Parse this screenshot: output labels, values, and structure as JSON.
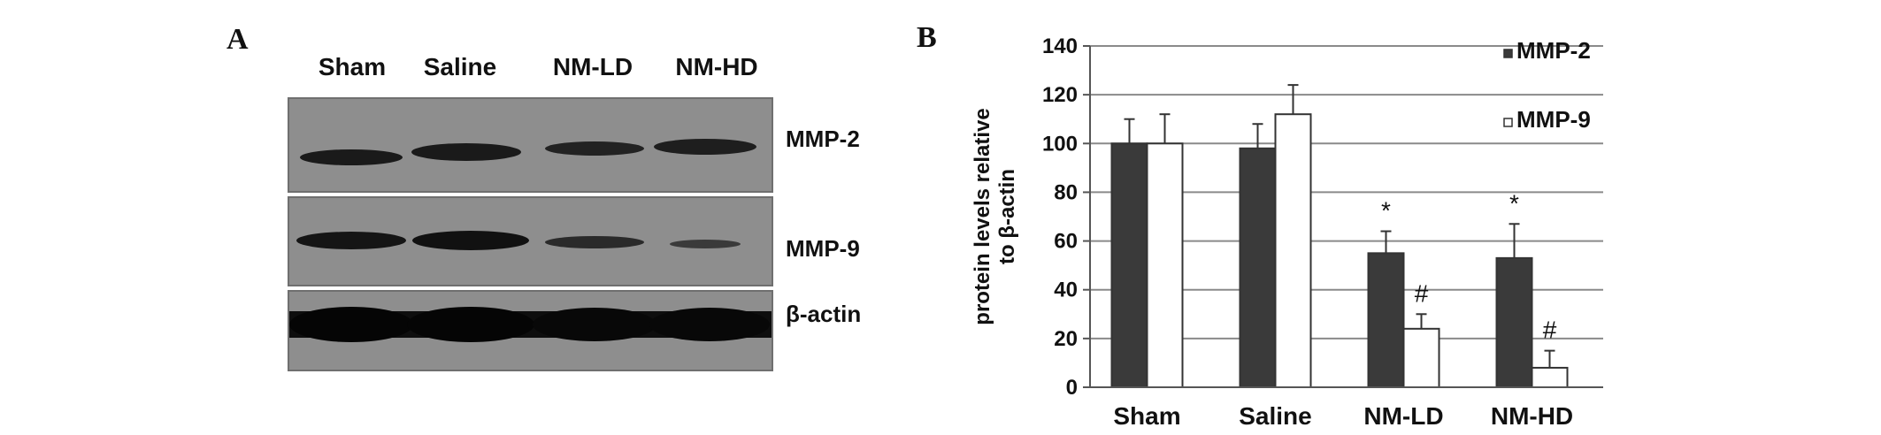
{
  "panel_a": {
    "letter": "A",
    "lanes": [
      "Sham",
      "Saline",
      "NM-LD",
      "NM-HD"
    ],
    "rows": [
      "MMP-2",
      "MMP-9",
      "β-actin"
    ]
  },
  "panel_b": {
    "letter": "B"
  },
  "chart_data": {
    "type": "bar",
    "categories": [
      "Sham",
      "Saline",
      "NM-LD",
      "NM-HD"
    ],
    "series": [
      {
        "name": "MMP-2",
        "values": [
          100,
          98,
          55,
          53
        ],
        "errors": [
          10,
          10,
          9,
          14
        ],
        "color": "#3a3a3a"
      },
      {
        "name": "MMP-9",
        "values": [
          100,
          112,
          24,
          8
        ],
        "errors": [
          12,
          12,
          6,
          7
        ],
        "color": "#ffffff"
      }
    ],
    "ylabel_lines": [
      "protein levels relative",
      "to β-actin"
    ],
    "ylim": [
      0,
      140
    ],
    "yticks": [
      0,
      20,
      40,
      60,
      80,
      100,
      120,
      140
    ],
    "grid": true,
    "legend": "right",
    "annotations": [
      {
        "category": "NM-LD",
        "series": "MMP-2",
        "text": "*"
      },
      {
        "category": "NM-LD",
        "series": "MMP-9",
        "text": "#"
      },
      {
        "category": "NM-HD",
        "series": "MMP-2",
        "text": "*"
      },
      {
        "category": "NM-HD",
        "series": "MMP-9",
        "text": "#"
      }
    ]
  }
}
